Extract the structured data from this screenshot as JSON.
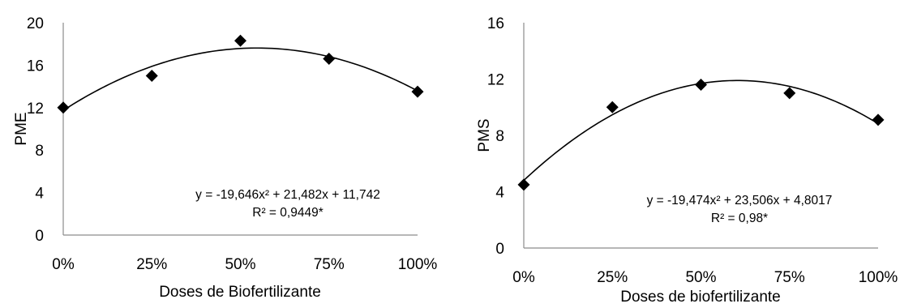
{
  "chart_data": [
    {
      "type": "scatter",
      "categories": [
        "0%",
        "25%",
        "50%",
        "75%",
        "100%"
      ],
      "x": [
        0,
        0.25,
        0.5,
        0.75,
        1.0
      ],
      "values": [
        12.0,
        15.0,
        18.3,
        16.6,
        13.5
      ],
      "ylabel": "PME",
      "xlabel": "Doses de Biofertilizante",
      "ylim": [
        0,
        20
      ],
      "yticks": [
        "0",
        "4",
        "8",
        "12",
        "16",
        "20"
      ],
      "trendline": {
        "type": "polynomial-2",
        "a": -19.646,
        "b": 21.482,
        "c": 11.742
      },
      "equation": "y = -19,646x² + 21,482x + 11,742",
      "r2": "R² = 0,9449*",
      "marker": "diamond",
      "color": "#000000"
    },
    {
      "type": "scatter",
      "categories": [
        "0%",
        "25%",
        "50%",
        "75%",
        "100%"
      ],
      "x": [
        0,
        0.25,
        0.5,
        0.75,
        1.0
      ],
      "values": [
        4.5,
        10.0,
        11.6,
        11.0,
        9.1
      ],
      "ylabel": "PMS",
      "xlabel": "Doses de biofertilizante",
      "ylim": [
        0,
        16
      ],
      "yticks": [
        "0",
        "4",
        "8",
        "12",
        "16"
      ],
      "trendline": {
        "type": "polynomial-2",
        "a": -19.474,
        "b": 23.506,
        "c": 4.8017
      },
      "equation": "y = -19,474x² + 23,506x + 4,8017",
      "r2": "R² = 0,98*",
      "marker": "diamond",
      "color": "#000000"
    }
  ]
}
